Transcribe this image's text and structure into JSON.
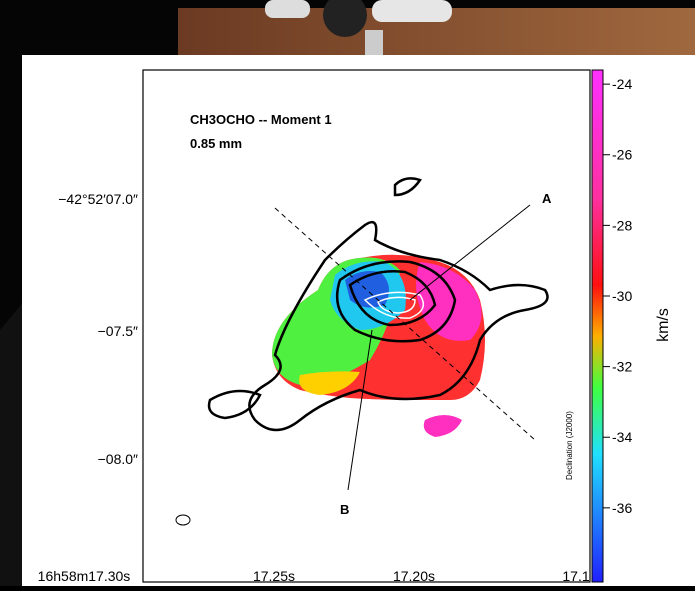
{
  "figure": {
    "title": "CH3OCHO -- Moment 1",
    "subtitle": "0.85 mm",
    "labels": [
      "A",
      "B"
    ],
    "side_label": "Declination (J2000)",
    "y_labels": [
      "−42°52′07.0″",
      "−07.5″",
      "−08.0″"
    ],
    "x_labels": [
      "16h58m17.30s",
      "17.25s",
      "17.20s",
      "17.1"
    ],
    "colorbar": {
      "label": "km/s",
      "range": [
        -23.6,
        -38.1
      ],
      "ticks": [
        -24,
        -26,
        -28,
        -30,
        -32,
        -34,
        -36
      ]
    }
  }
}
